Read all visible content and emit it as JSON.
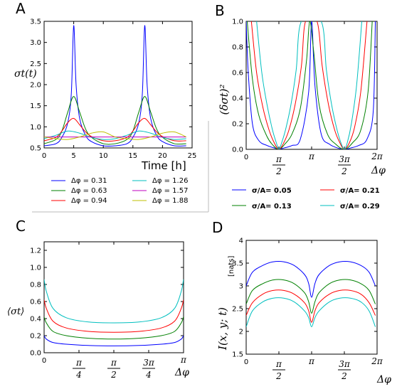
{
  "colors": {
    "blue": "#0000ff",
    "green": "#008000",
    "red": "#ff0000",
    "cyan": "#00bfbf",
    "magenta": "#bf00bf",
    "olive": "#bfbf00"
  },
  "panels": {
    "A": {
      "label": "A",
      "ylabel": "σt(t)",
      "xlabel": "Time [h]",
      "xticks": [
        "0",
        "5",
        "10",
        "15",
        "20",
        "25"
      ],
      "yticks": [
        "0.5",
        "1.0",
        "1.5",
        "2.0",
        "2.5",
        "3.0",
        "3.5"
      ],
      "legend": [
        "Δφ = 0.31",
        "Δφ = 0.63",
        "Δφ = 0.94",
        "Δφ = 1.26",
        "Δφ = 1.57",
        "Δφ = 1.88"
      ]
    },
    "B": {
      "label": "B",
      "ylabel": "(δσt)²",
      "xlabel": "Δφ",
      "xticks": [
        "0",
        "π/2",
        "π",
        "3π/2",
        "2π"
      ],
      "yticks": [
        "0.0",
        "0.2",
        "0.4",
        "0.6",
        "0.8",
        "1.0"
      ],
      "legend": [
        "σ/A= 0.05",
        "σ/A= 0.21",
        "σ/A= 0.13",
        "σ/A= 0.29"
      ]
    },
    "C": {
      "label": "C",
      "ylabel": "⟨σt⟩",
      "xlabel": "Δφ",
      "xticks": [
        "0",
        "π/4",
        "π/2",
        "3π/4",
        "π"
      ],
      "yticks": [
        "0.0",
        "0.2",
        "0.4",
        "0.6",
        "0.8",
        "1.0",
        "1.2"
      ]
    },
    "D": {
      "label": "D",
      "ylabel": "I(x, y; t)",
      "yunit": "[nats]",
      "xlabel": "Δφ",
      "xticks": [
        "0",
        "π/2",
        "π",
        "3π/2",
        "2π"
      ],
      "yticks": [
        "1.5",
        "2",
        "2.5",
        "3",
        "3.5",
        "4"
      ]
    }
  },
  "chart_data": [
    {
      "panel": "A",
      "type": "line",
      "xlabel": "Time [h]",
      "ylabel": "σt(t)",
      "xlim": [
        0,
        25
      ],
      "ylim": [
        0.5,
        3.5
      ],
      "series": [
        {
          "name": "Δφ = 0.31",
          "color": "blue",
          "x": [
            0,
            2,
            3,
            4,
            4.6,
            5,
            5.4,
            6,
            7,
            8,
            10,
            12,
            14,
            15,
            16,
            16.6,
            17,
            17.4,
            18,
            19,
            20,
            22,
            24
          ],
          "y": [
            0.55,
            0.6,
            0.75,
            1.1,
            1.8,
            3.4,
            2.0,
            1.2,
            0.8,
            0.65,
            0.55,
            0.55,
            0.6,
            0.75,
            1.1,
            1.8,
            3.4,
            2.0,
            1.2,
            0.8,
            0.65,
            0.55,
            0.55
          ]
        },
        {
          "name": "Δφ = 0.63",
          "color": "green",
          "x": [
            0,
            2,
            3,
            4,
            5,
            6,
            7,
            8,
            10,
            12,
            14,
            15,
            16,
            17,
            18,
            19,
            20,
            22,
            24
          ],
          "y": [
            0.6,
            0.7,
            0.9,
            1.35,
            1.72,
            1.35,
            0.95,
            0.75,
            0.6,
            0.6,
            0.7,
            0.9,
            1.35,
            1.72,
            1.35,
            0.95,
            0.75,
            0.6,
            0.6
          ]
        },
        {
          "name": "Δφ = 0.94",
          "color": "red",
          "x": [
            0,
            2,
            3,
            4,
            5,
            6,
            7,
            8,
            10,
            12,
            14,
            15,
            16,
            17,
            18,
            19,
            20,
            22,
            24
          ],
          "y": [
            0.67,
            0.75,
            0.9,
            1.1,
            1.2,
            1.05,
            0.88,
            0.77,
            0.67,
            0.67,
            0.75,
            0.9,
            1.1,
            1.2,
            1.05,
            0.88,
            0.77,
            0.67,
            0.67
          ]
        },
        {
          "name": "Δφ = 1.26",
          "color": "cyan",
          "x": [
            0,
            2,
            4,
            6,
            8,
            10,
            12,
            14,
            16,
            18,
            20,
            22,
            24
          ],
          "y": [
            0.72,
            0.8,
            0.9,
            0.85,
            0.75,
            0.7,
            0.72,
            0.8,
            0.9,
            0.85,
            0.75,
            0.7,
            0.72
          ]
        },
        {
          "name": "Δφ = 1.57",
          "color": "magenta",
          "x": [
            0,
            6,
            12,
            18,
            24
          ],
          "y": [
            0.76,
            0.76,
            0.76,
            0.76,
            0.76
          ]
        },
        {
          "name": "Δφ = 1.88",
          "color": "olive",
          "x": [
            0,
            2,
            4,
            6,
            8,
            10,
            12,
            14,
            16,
            18,
            20,
            22,
            24
          ],
          "y": [
            0.76,
            0.72,
            0.7,
            0.76,
            0.85,
            0.88,
            0.76,
            0.72,
            0.7,
            0.76,
            0.85,
            0.88,
            0.76
          ]
        }
      ]
    },
    {
      "panel": "B",
      "type": "line",
      "xlabel": "Δφ",
      "ylabel": "(δσt)²",
      "xlim": [
        0,
        6.283
      ],
      "ylim": [
        0,
        1
      ],
      "series": [
        {
          "name": "σ/A= 0.05",
          "color": "blue",
          "x": [
            0,
            0.1,
            0.3,
            0.6,
            1.0,
            1.4,
            1.571,
            1.8,
            2.2,
            2.6,
            3.0,
            3.14,
            3.3,
            3.6,
            4.0,
            4.4,
            4.712,
            5.0,
            5.4,
            5.8,
            6.1,
            6.2
          ],
          "y": [
            1,
            0.6,
            0.2,
            0.07,
            0.03,
            0.008,
            0,
            0.01,
            0.03,
            0.08,
            0.45,
            1,
            0.5,
            0.12,
            0.04,
            0.01,
            0,
            0.01,
            0.03,
            0.08,
            0.3,
            1
          ]
        },
        {
          "name": "σ/A= 0.13",
          "color": "green",
          "x": [
            0.05,
            0.3,
            0.6,
            1.0,
            1.3,
            1.571,
            1.85,
            2.2,
            2.6,
            2.9,
            3.05,
            3.25,
            3.5,
            3.9,
            4.3,
            4.712,
            5.1,
            5.5,
            5.85,
            6.05
          ],
          "y": [
            1,
            0.55,
            0.27,
            0.1,
            0.03,
            0,
            0.04,
            0.12,
            0.32,
            0.7,
            1,
            0.75,
            0.35,
            0.12,
            0.04,
            0,
            0.05,
            0.15,
            0.45,
            1
          ]
        },
        {
          "name": "σ/A= 0.21",
          "color": "red",
          "x": [
            0.25,
            0.5,
            0.8,
            1.1,
            1.35,
            1.571,
            1.8,
            2.05,
            2.35,
            2.65,
            2.85,
            3.4,
            3.65,
            3.95,
            4.25,
            4.5,
            4.712,
            4.95,
            5.2,
            5.5,
            5.8
          ],
          "y": [
            1,
            0.6,
            0.33,
            0.15,
            0.05,
            0,
            0.05,
            0.15,
            0.35,
            0.65,
            1,
            1,
            0.65,
            0.35,
            0.15,
            0.05,
            0,
            0.05,
            0.17,
            0.45,
            1
          ]
        },
        {
          "name": "σ/A= 0.29",
          "color": "cyan",
          "x": [
            0.5,
            0.75,
            1.0,
            1.25,
            1.45,
            1.571,
            1.7,
            1.9,
            2.15,
            2.4,
            2.65,
            3.6,
            3.85,
            4.1,
            4.35,
            4.55,
            4.712,
            4.85,
            5.05,
            5.3,
            5.55
          ],
          "y": [
            1,
            0.6,
            0.35,
            0.16,
            0.05,
            0,
            0.05,
            0.16,
            0.35,
            0.62,
            1,
            1,
            0.62,
            0.35,
            0.16,
            0.05,
            0,
            0.05,
            0.2,
            0.5,
            1
          ]
        }
      ]
    },
    {
      "panel": "C",
      "type": "line",
      "xlabel": "Δφ",
      "ylabel": "⟨σt⟩",
      "xlim": [
        0,
        3.1416
      ],
      "ylim": [
        0,
        1.3
      ],
      "series": [
        {
          "name": "σ/A= 0.05",
          "color": "blue",
          "x": [
            0,
            0.05,
            0.2,
            0.5,
            1.0,
            1.5708,
            2.14,
            2.64,
            2.94,
            3.09,
            3.14
          ],
          "y": [
            0.2,
            0.16,
            0.12,
            0.1,
            0.085,
            0.08,
            0.085,
            0.1,
            0.12,
            0.16,
            0.2
          ]
        },
        {
          "name": "σ/A= 0.13",
          "color": "green",
          "x": [
            0,
            0.05,
            0.2,
            0.5,
            1.0,
            1.5708,
            2.14,
            2.64,
            2.94,
            3.09,
            3.14
          ],
          "y": [
            0.42,
            0.35,
            0.25,
            0.2,
            0.17,
            0.16,
            0.17,
            0.2,
            0.25,
            0.35,
            0.42
          ]
        },
        {
          "name": "σ/A= 0.21",
          "color": "red",
          "x": [
            0,
            0.05,
            0.2,
            0.5,
            1.0,
            1.5708,
            2.14,
            2.64,
            2.94,
            3.09,
            3.14
          ],
          "y": [
            0.62,
            0.52,
            0.37,
            0.29,
            0.25,
            0.24,
            0.25,
            0.29,
            0.37,
            0.52,
            0.62
          ]
        },
        {
          "name": "σ/A= 0.29",
          "color": "cyan",
          "x": [
            0,
            0.05,
            0.2,
            0.5,
            1.0,
            1.5708,
            2.14,
            2.64,
            2.94,
            3.09,
            3.14
          ],
          "y": [
            0.86,
            0.72,
            0.52,
            0.41,
            0.36,
            0.35,
            0.36,
            0.41,
            0.52,
            0.72,
            0.86
          ]
        }
      ]
    },
    {
      "panel": "D",
      "type": "line",
      "xlabel": "Δφ",
      "ylabel": "I(x, y; t)",
      "xlim": [
        0,
        6.283
      ],
      "ylim": [
        1.5,
        4
      ],
      "series": [
        {
          "name": "σ/A= 0.05",
          "color": "blue",
          "x": [
            0,
            0.3,
            0.8,
            1.3,
            1.8,
            2.3,
            2.8,
            3.0,
            3.14,
            3.3,
            3.5,
            4.0,
            4.5,
            5.0,
            5.5,
            5.9,
            6.2
          ],
          "y": [
            3.0,
            3.3,
            3.45,
            3.53,
            3.53,
            3.45,
            3.25,
            3.05,
            2.75,
            3.05,
            3.25,
            3.45,
            3.53,
            3.53,
            3.45,
            3.3,
            3.0
          ]
        },
        {
          "name": "σ/A= 0.13",
          "color": "green",
          "x": [
            0,
            0.3,
            0.8,
            1.3,
            1.8,
            2.3,
            2.8,
            3.0,
            3.14,
            3.3,
            3.5,
            4.0,
            4.5,
            5.0,
            5.5,
            5.9,
            6.2
          ],
          "y": [
            2.6,
            2.9,
            3.05,
            3.13,
            3.13,
            3.05,
            2.85,
            2.65,
            2.4,
            2.65,
            2.85,
            3.05,
            3.13,
            3.13,
            3.05,
            2.9,
            2.6
          ]
        },
        {
          "name": "σ/A= 0.21",
          "color": "red",
          "x": [
            0,
            0.3,
            0.8,
            1.3,
            1.8,
            2.3,
            2.8,
            3.0,
            3.14,
            3.3,
            3.5,
            4.0,
            4.5,
            5.0,
            5.5,
            5.9,
            6.2
          ],
          "y": [
            2.35,
            2.63,
            2.82,
            2.9,
            2.9,
            2.82,
            2.63,
            2.45,
            2.2,
            2.45,
            2.63,
            2.82,
            2.9,
            2.9,
            2.82,
            2.63,
            2.35
          ]
        },
        {
          "name": "σ/A= 0.29",
          "color": "cyan",
          "x": [
            0,
            0.3,
            0.8,
            1.3,
            1.8,
            2.3,
            2.8,
            3.0,
            3.14,
            3.3,
            3.5,
            4.0,
            4.5,
            5.0,
            5.5,
            5.9,
            6.2
          ],
          "y": [
            2.1,
            2.45,
            2.65,
            2.73,
            2.73,
            2.65,
            2.45,
            2.3,
            2.1,
            2.3,
            2.45,
            2.65,
            2.73,
            2.73,
            2.65,
            2.45,
            2.1
          ]
        }
      ]
    }
  ]
}
